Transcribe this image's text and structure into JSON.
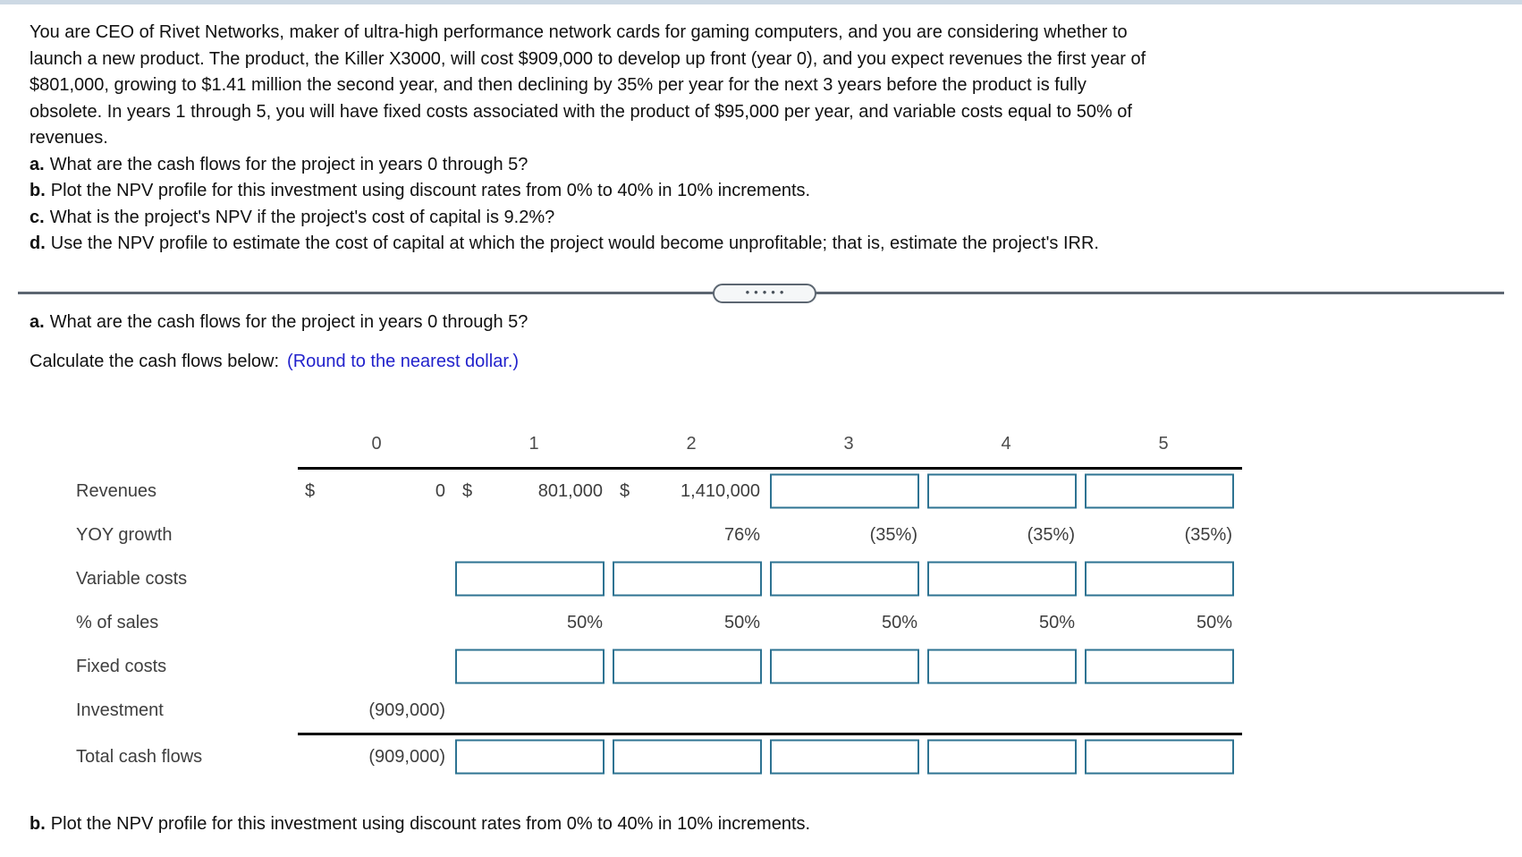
{
  "colors": {
    "top_strip": "#cdd9e4",
    "note_blue": "#2222cc",
    "input_border": "#2e7392",
    "divider_gray": "#5c6671"
  },
  "problem": {
    "lines": [
      "You are CEO of Rivet Networks, maker of ultra-high performance network cards for gaming computers, and you are considering whether to",
      "launch a new product. The product, the Killer X3000, will cost $909,000 to develop up front (year 0), and you expect revenues the first year of",
      "$801,000, growing to $1.41 million the second year, and then declining by 35% per year for the next 3 years before the product is fully",
      "obsolete. In years 1 through 5, you will have fixed costs associated with the product of $95,000 per year, and variable costs equal to 50% of",
      "revenues."
    ],
    "questions": [
      {
        "letter": "a.",
        "text": "What are the cash flows for the project in years 0 through 5?"
      },
      {
        "letter": "b.",
        "text": "Plot the NPV profile for this investment using discount rates from 0% to 40% in 10% increments."
      },
      {
        "letter": "c.",
        "text": "What is the project's NPV if the project's cost of capital is 9.2%?"
      },
      {
        "letter": "d.",
        "text": "Use the NPV profile to estimate the cost of capital at which the project would become unprofitable; that is, estimate the project's IRR."
      }
    ]
  },
  "divider": {
    "dots": "•••••"
  },
  "part_a": {
    "letter": "a.",
    "question": "What are the cash flows for the project in years 0 through 5?",
    "instruction": "Calculate the cash flows below:",
    "note": "(Round to the nearest dollar.)"
  },
  "table": {
    "columns": [
      "0",
      "1",
      "2",
      "3",
      "4",
      "5"
    ],
    "revenues": {
      "label": "Revenues",
      "d0": "$",
      "v0": "0",
      "d1": "$",
      "v1": "801,000",
      "d2": "$",
      "v2": "1,410,000"
    },
    "yoy": {
      "label": "YOY growth",
      "v2": "76%",
      "v3": "(35%)",
      "v4": "(35%)",
      "v5": "(35%)"
    },
    "variable": {
      "label": "Variable costs"
    },
    "pct_sales": {
      "label": "% of sales",
      "v1": "50%",
      "v2": "50%",
      "v3": "50%",
      "v4": "50%",
      "v5": "50%"
    },
    "fixed": {
      "label": "Fixed costs"
    },
    "investment": {
      "label": "Investment",
      "v0": "(909,000)"
    },
    "total": {
      "label": "Total cash flows",
      "v0": "(909,000)"
    }
  },
  "part_b": {
    "letter": "b.",
    "question": "Plot the NPV profile for this investment using discount rates from 0% to 40% in 10% increments."
  }
}
